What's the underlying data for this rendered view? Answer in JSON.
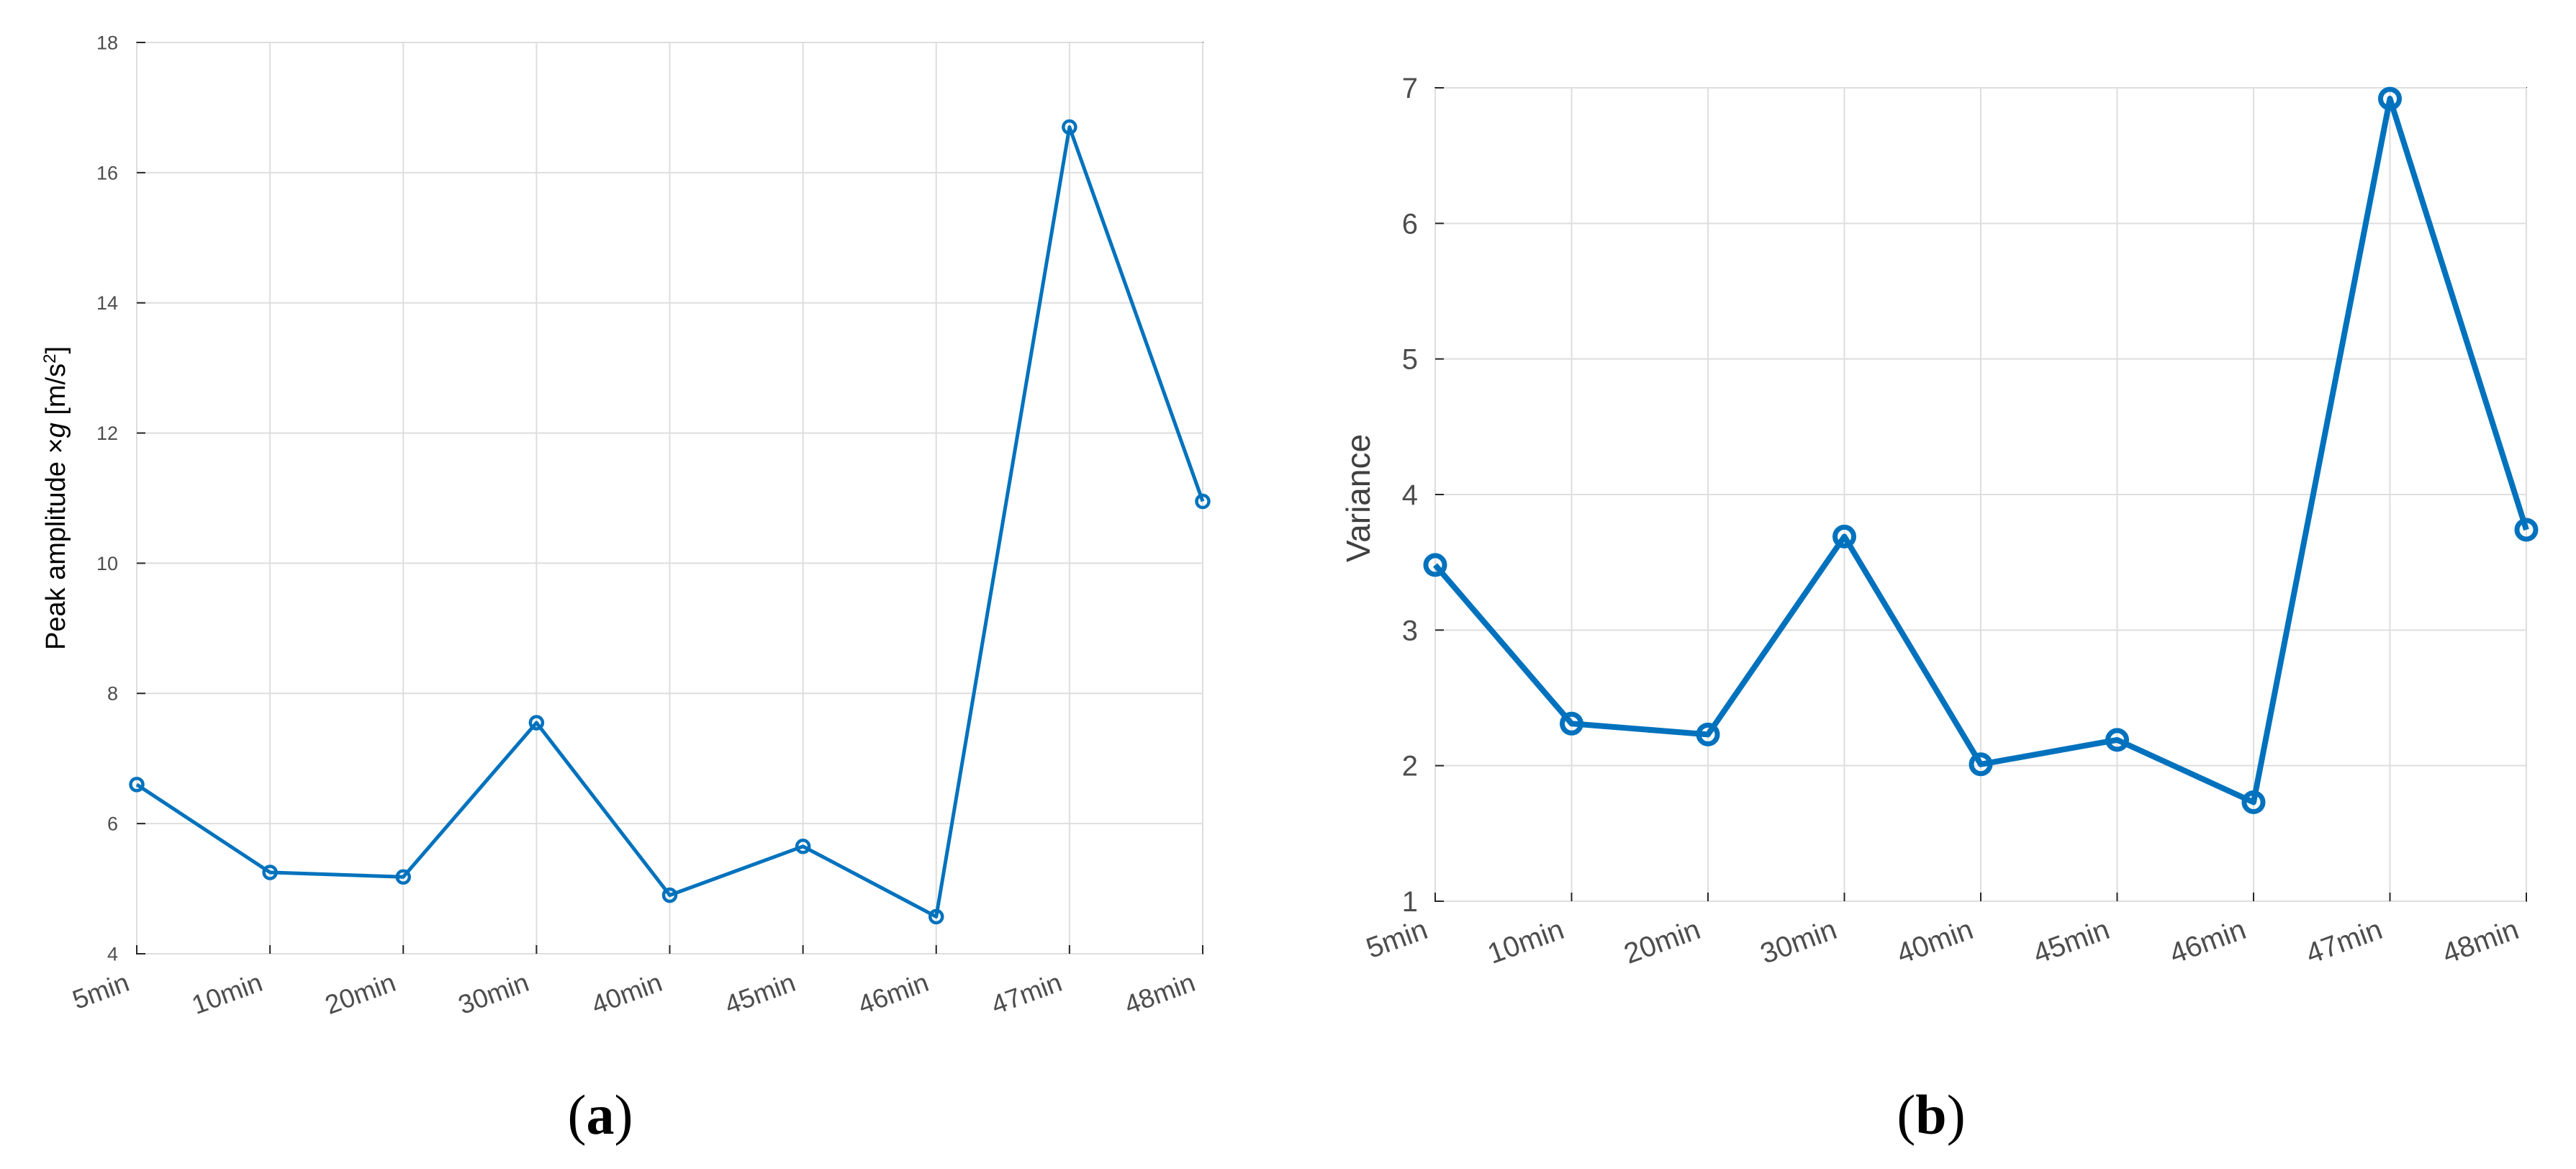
{
  "figure": {
    "line_color": "#0072bd",
    "panels": [
      {
        "label_parts": [
          "(",
          "a",
          ")"
        ]
      },
      {
        "label_parts": [
          "(",
          "b",
          ")"
        ]
      }
    ]
  },
  "chart_data": [
    {
      "type": "line",
      "title": "",
      "xlabel": "",
      "ylabel": "Peak amplitude ×g [m/s²]",
      "ylabel_parts": [
        "Peak amplitude ×",
        "g",
        " [m/s",
        "2",
        "]"
      ],
      "categories": [
        "5min",
        "10min",
        "20min",
        "30min",
        "40min",
        "45min",
        "46min",
        "47min",
        "48min"
      ],
      "series": [
        {
          "values": [
            6.6,
            5.25,
            5.18,
            7.55,
            4.9,
            5.65,
            4.57,
            16.7,
            10.95
          ]
        }
      ],
      "ylim": [
        4,
        18
      ],
      "yticks": [
        4,
        6,
        8,
        10,
        12,
        14,
        16,
        18
      ],
      "grid": true,
      "marker": "circle"
    },
    {
      "type": "line",
      "title": "",
      "xlabel": "",
      "ylabel": "Variance",
      "categories": [
        "5min",
        "10min",
        "20min",
        "30min",
        "40min",
        "45min",
        "46min",
        "47min",
        "48min"
      ],
      "series": [
        {
          "values": [
            3.48,
            2.31,
            2.23,
            3.69,
            2.01,
            2.19,
            1.73,
            6.92,
            3.74
          ]
        }
      ],
      "ylim": [
        1,
        7
      ],
      "yticks": [
        1,
        2,
        3,
        4,
        5,
        6,
        7
      ],
      "grid": true,
      "marker": "circle"
    }
  ]
}
